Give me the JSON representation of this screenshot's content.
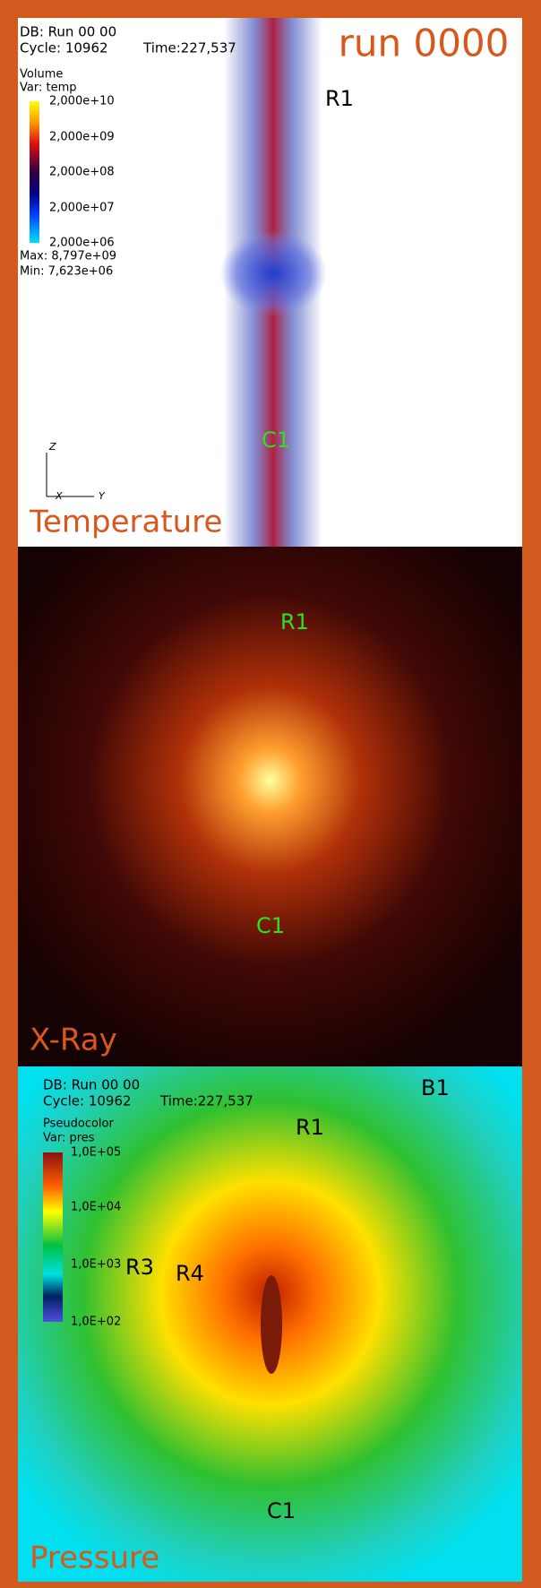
{
  "title": "run 0000",
  "panels": [
    {
      "label": "Temperature",
      "db": "DB: Run 00 00",
      "cycle": "Cycle: 10962",
      "time": "Time:227,537",
      "legend": {
        "title": "Volume",
        "var": "Var: temp",
        "ticks": [
          "2,000e+10",
          "2,000e+09",
          "2,000e+08",
          "2,000e+07",
          "2,000e+06"
        ],
        "max": "Max:  8,797e+09",
        "min": "Min:  7,623e+06"
      },
      "axes": [
        "Z",
        "X",
        "Y"
      ],
      "annotations": [
        "R1",
        "C1"
      ]
    },
    {
      "label": "X-Ray",
      "annotations": [
        "R1",
        "C1"
      ]
    },
    {
      "label": "Pressure",
      "db": "DB: Run 00 00",
      "cycle": "Cycle: 10962",
      "time": "Time:227,537",
      "legend": {
        "title": "Pseudocolor",
        "var": "Var: pres",
        "ticks": [
          "1,0E+05",
          "1,0E+04",
          "1,0E+03",
          "1,0E+02"
        ]
      },
      "annotations": [
        "B1",
        "R1",
        "R3",
        "R4",
        "C1"
      ]
    }
  ]
}
